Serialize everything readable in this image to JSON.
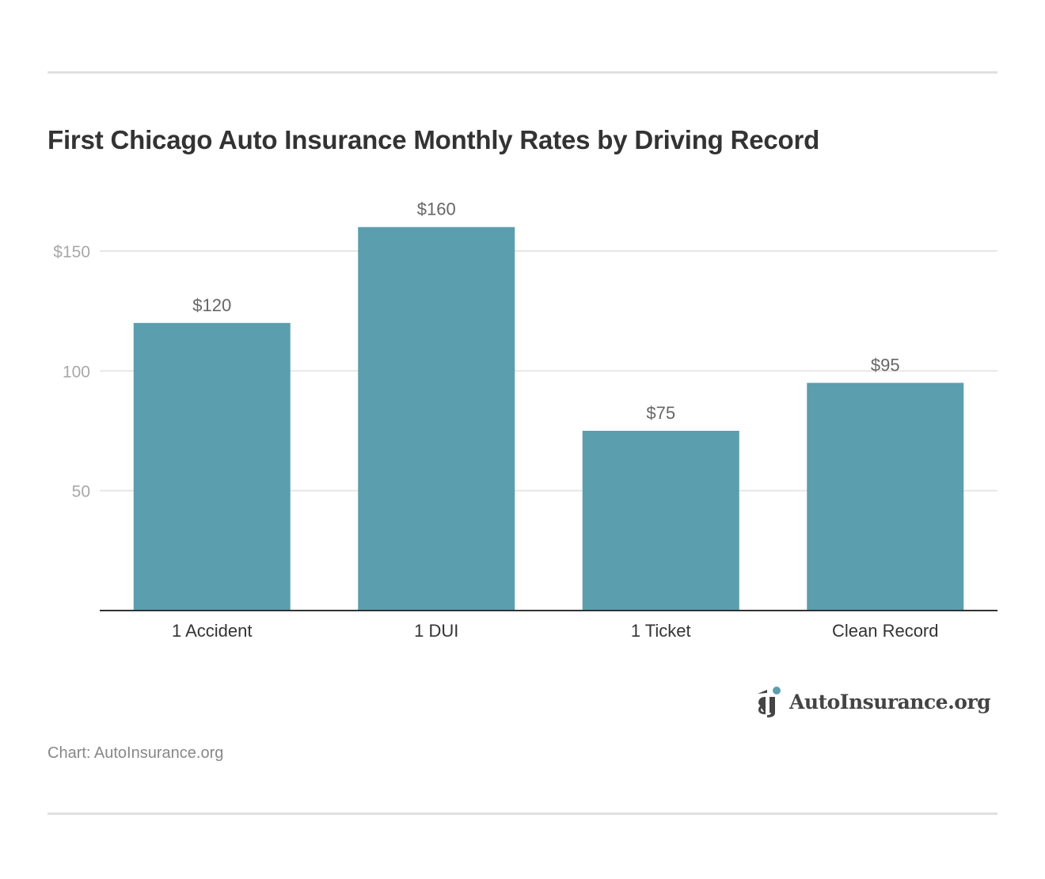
{
  "chart_data": {
    "type": "bar",
    "title": "First Chicago Auto Insurance Monthly Rates by Driving Record",
    "categories": [
      "1 Accident",
      "1 DUI",
      "1 Ticket",
      "Clean Record"
    ],
    "values": [
      120,
      160,
      75,
      95
    ],
    "data_labels": [
      "$120",
      "$160",
      "$75",
      "$95"
    ],
    "xlabel": "",
    "ylabel": "",
    "ylim": [
      0,
      170
    ],
    "yticks": [
      50,
      100,
      150
    ],
    "ytick_labels": [
      "50",
      "100",
      "$150"
    ],
    "grid": true,
    "bar_color": "#5b9eae"
  },
  "source": "Chart: AutoInsurance.org",
  "logo": {
    "text": "AutoInsurance.org",
    "accent_color": "#5b9eae"
  }
}
